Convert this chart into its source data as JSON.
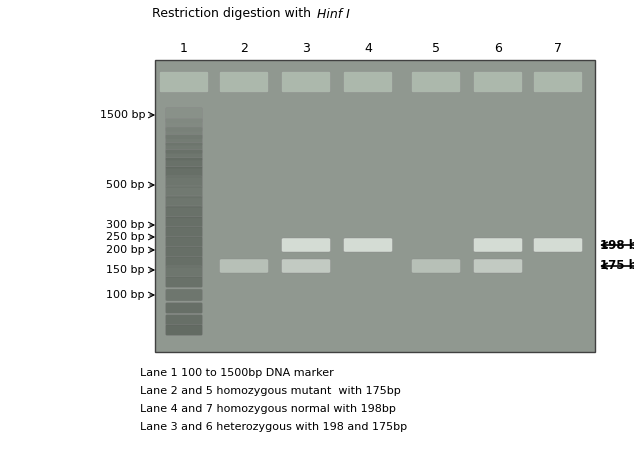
{
  "title_normal": "Restriction digestion with ",
  "title_italic": "Hinf I",
  "gel_facecolor": "#909890",
  "gel_edgecolor": "#404040",
  "band_color": "#c8d0c8",
  "band_color_bright": "#d8e0d8",
  "ladder_color": "#b8c4b8",
  "top_band_color": "#b0bcb0",
  "lane_numbers": [
    "1",
    "2",
    "3",
    "4",
    "5",
    "6",
    "7"
  ],
  "marker_labels": [
    "1500 bp",
    "500 bp",
    "300 bp",
    "250 bp",
    "200 bp",
    "150 bp",
    "100 bp"
  ],
  "legend_lines": [
    "Lane 1 100 to 1500bp DNA marker",
    "Lane 2 and 5 homozygous mutant  with 175bp",
    "Lane 4 and 7 homozygous normal with 198bp",
    "Lane 3 and 6 heterozygous with 198 and 175bp"
  ]
}
